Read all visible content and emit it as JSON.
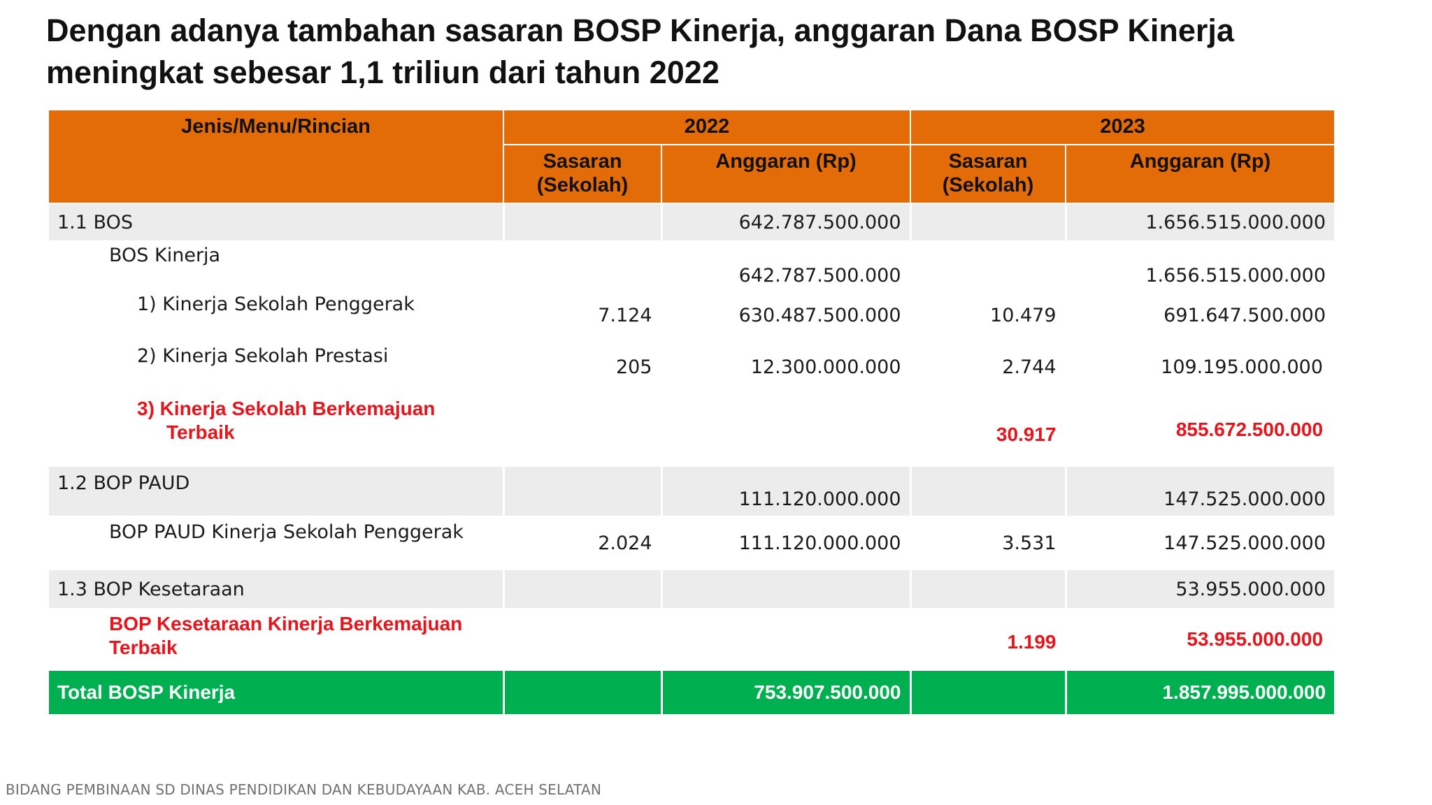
{
  "title": {
    "line1": "Dengan adanya tambahan sasaran BOSP Kinerja, anggaran Dana BOSP Kinerja",
    "line2": "meningkat sebesar 1,1 triliun dari tahun 2022"
  },
  "table": {
    "header": {
      "col_item": "Jenis/Menu/Rincian",
      "year_2022": "2022",
      "year_2023": "2023",
      "sasaran": "Sasaran (Sekolah)",
      "anggaran": "Anggaran (Rp)"
    },
    "rows": [
      {
        "label": "1.1 BOS",
        "s2022": "",
        "a2022": "642.787.500.000",
        "s2023": "",
        "a2023": "1.656.515.000.000"
      },
      {
        "label": "BOS Kinerja",
        "s2022": "",
        "a2022": "642.787.500.000",
        "s2023": "",
        "a2023": "1.656.515.000.000"
      },
      {
        "label": "1) Kinerja Sekolah Penggerak",
        "s2022": "7.124",
        "a2022": "630.487.500.000",
        "s2023": "10.479",
        "a2023": "691.647.500.000"
      },
      {
        "label": "2) Kinerja Sekolah Prestasi",
        "s2022": "205",
        "a2022": "12.300.000.000",
        "s2023": "2.744",
        "a2023": "109.195.000.000"
      },
      {
        "label_line1": "3) Kinerja Sekolah Berkemajuan",
        "label_line2": "Terbaik",
        "s2022": "",
        "a2022": "",
        "s2023": "30.917",
        "a2023": "855.672.500.000"
      },
      {
        "label": "1.2 BOP PAUD",
        "s2022": "",
        "a2022": "111.120.000.000",
        "s2023": "",
        "a2023": "147.525.000.000"
      },
      {
        "label": "BOP PAUD Kinerja Sekolah Penggerak",
        "s2022": "2.024",
        "a2022": "111.120.000.000",
        "s2023": "3.531",
        "a2023": "147.525.000.000"
      },
      {
        "label": "1.3 BOP Kesetaraan",
        "s2022": "",
        "a2022": "",
        "s2023": "",
        "a2023": "53.955.000.000"
      },
      {
        "label_line1": "BOP Kesetaraan Kinerja Berkemajuan",
        "label_line2": "Terbaik",
        "s2022": "",
        "a2022": "",
        "s2023": "1.199",
        "a2023": "53.955.000.000"
      }
    ],
    "total": {
      "label": "Total BOSP Kinerja",
      "s2022": "",
      "a2022": "753.907.500.000",
      "s2023": "",
      "a2023": "1.857.995.000.000"
    }
  },
  "colors": {
    "header_orange": "#e36c09",
    "total_green": "#00b050",
    "highlight_red": "#e8141c",
    "row_shade": "#ececec"
  },
  "footer": "BIDANG PEMBINAAN SD DINAS PENDIDIKAN DAN KEBUDAYAAN KAB. ACEH SELATAN"
}
